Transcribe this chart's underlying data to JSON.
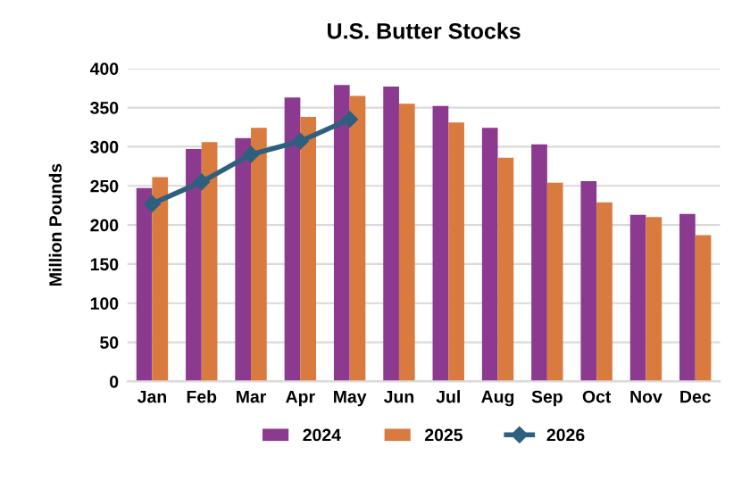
{
  "chart_data": {
    "type": "bar",
    "title": "U.S. Butter Stocks",
    "ylabel": "Million Pounds",
    "categories": [
      "Jan",
      "Feb",
      "Mar",
      "Apr",
      "May",
      "Jun",
      "Jul",
      "Aug",
      "Sep",
      "Oct",
      "Nov",
      "Dec"
    ],
    "series": [
      {
        "name": "2024",
        "color": "#8b3a8f",
        "values": [
          247,
          297,
          311,
          363,
          379,
          377,
          352,
          324,
          303,
          256,
          213,
          214
        ]
      },
      {
        "name": "2025",
        "color": "#d97a3f",
        "values": [
          261,
          306,
          324,
          338,
          365,
          355,
          331,
          286,
          254,
          229,
          210,
          187
        ]
      },
      {
        "name": "2026",
        "type": "line",
        "marker": "diamond",
        "color": "#2e5f7f",
        "values": [
          227,
          255,
          290,
          307,
          335,
          null,
          null,
          null,
          null,
          null,
          null,
          null
        ]
      }
    ],
    "ylim": [
      0,
      400
    ],
    "yticks": [
      0,
      50,
      100,
      150,
      200,
      250,
      300,
      350,
      400
    ],
    "grid": "y",
    "legend": "bottom"
  }
}
